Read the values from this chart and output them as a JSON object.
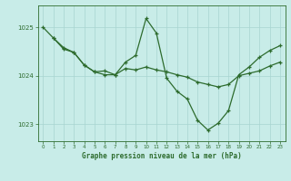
{
  "title": "Graphe pression niveau de la mer (hPa)",
  "background_color": "#c8ece8",
  "line_color": "#2d6b2d",
  "grid_color": "#a8d4d0",
  "xlim": [
    -0.5,
    23.5
  ],
  "ylim": [
    1022.65,
    1025.45
  ],
  "yticks": [
    1023,
    1024,
    1025
  ],
  "xticks": [
    0,
    1,
    2,
    3,
    4,
    5,
    6,
    7,
    8,
    9,
    10,
    11,
    12,
    13,
    14,
    15,
    16,
    17,
    18,
    19,
    20,
    21,
    22,
    23
  ],
  "line1_x": [
    0,
    1,
    2,
    3,
    4,
    5,
    6,
    7,
    8,
    9,
    10,
    11,
    12,
    13,
    14,
    15,
    16,
    17,
    18,
    19,
    20,
    21,
    22,
    23
  ],
  "line1_y": [
    1025.0,
    1024.78,
    1024.58,
    1024.48,
    1024.22,
    1024.08,
    1024.02,
    1024.02,
    1024.15,
    1024.12,
    1024.18,
    1024.12,
    1024.08,
    1024.02,
    1023.97,
    1023.87,
    1023.82,
    1023.77,
    1023.82,
    1024.0,
    1024.05,
    1024.1,
    1024.2,
    1024.28
  ],
  "line2_x": [
    1,
    2,
    3,
    4,
    5,
    6,
    7,
    8,
    9,
    10,
    11,
    12,
    13,
    14,
    15,
    16,
    17,
    18,
    19,
    20,
    21,
    22,
    23
  ],
  "line2_y": [
    1024.78,
    1024.55,
    1024.48,
    1024.22,
    1024.08,
    1024.1,
    1024.02,
    1024.28,
    1024.42,
    1025.18,
    1024.88,
    1023.95,
    1023.68,
    1023.52,
    1023.08,
    1022.88,
    1023.02,
    1023.28,
    1024.02,
    1024.18,
    1024.38,
    1024.52,
    1024.62
  ]
}
